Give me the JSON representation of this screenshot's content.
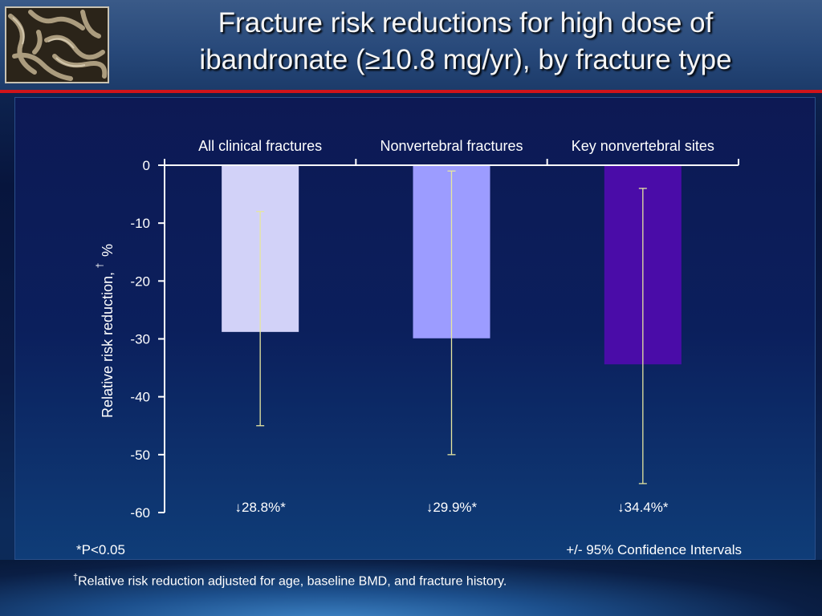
{
  "slide": {
    "title_line1": "Fracture risk reductions for high dose of",
    "title_line2": "ibandronate (≥10.8 mg/yr), by fracture type",
    "logo_icon": "bone-texture-image",
    "accent_color": "#d0141a",
    "footnote_mark": "†",
    "footnote_text": "Relative risk reduction adjusted for age, baseline BMD, and fracture history."
  },
  "chart_data": {
    "type": "bar",
    "categories": [
      "All clinical fractures",
      "Nonvertebral fractures",
      "Key nonvertebral sites"
    ],
    "values": [
      -28.8,
      -29.9,
      -34.4
    ],
    "error_low": [
      -45,
      -50,
      -55
    ],
    "error_high": [
      -8,
      -1,
      -4
    ],
    "bar_colors": [
      "#d2d2f8",
      "#9c9cff",
      "#4a0ca8"
    ],
    "errorbar_color": "#e6e6a0",
    "data_labels": [
      "↓28.8%*",
      "↓29.9%*",
      "↓34.4%*"
    ],
    "ylabel": "Relative risk reduction,",
    "ylabel_mark": "†",
    "ylabel_unit": "%",
    "ylim": [
      -60,
      0
    ],
    "yticks": [
      0,
      -10,
      -20,
      -30,
      -40,
      -50,
      -60
    ],
    "x_axis_position": "top",
    "grid": false,
    "note_left": "*P<0.05",
    "note_right": "+/- 95% Confidence Intervals"
  }
}
